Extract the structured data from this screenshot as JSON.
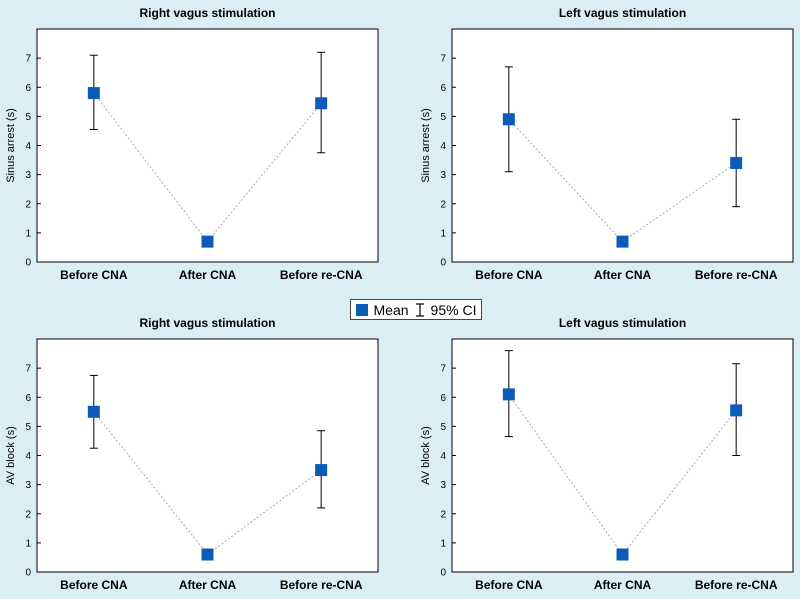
{
  "legend": {
    "mean_label": "Mean",
    "ci_label": "95% CI"
  },
  "colors": {
    "marker": "#0b5cb8",
    "background": "#dbeef5",
    "plot_bg": "#ffffff",
    "connector": "#aaaaaa"
  },
  "chart_data": [
    {
      "type": "scatter",
      "title": "Right vagus stimulation",
      "ylabel": "Sinus arrest (s)",
      "xlabel": "",
      "categories": [
        "Before CNA",
        "After CNA",
        "Before re-CNA"
      ],
      "ylim": [
        0,
        8
      ],
      "yticks": [
        0,
        1,
        2,
        3,
        4,
        5,
        6,
        7
      ],
      "series": [
        {
          "values": [
            5.8,
            0.7,
            5.45
          ],
          "ci_low": [
            4.55,
            0.7,
            3.75
          ],
          "ci_high": [
            7.1,
            0.7,
            7.2
          ]
        }
      ],
      "connector": "dotted",
      "grid": false
    },
    {
      "type": "scatter",
      "title": "Left vagus stimulation",
      "ylabel": "Sinus arrest (s)",
      "xlabel": "",
      "categories": [
        "Before CNA",
        "After CNA",
        "Before re-CNA"
      ],
      "ylim": [
        0,
        8
      ],
      "yticks": [
        0,
        1,
        2,
        3,
        4,
        5,
        6,
        7
      ],
      "series": [
        {
          "values": [
            4.9,
            0.7,
            3.4
          ],
          "ci_low": [
            3.1,
            0.7,
            1.9
          ],
          "ci_high": [
            6.7,
            0.7,
            4.9
          ]
        }
      ],
      "connector": "dotted",
      "grid": false
    },
    {
      "type": "scatter",
      "title": "Right vagus stimulation",
      "ylabel": "AV block (s)",
      "xlabel": "",
      "categories": [
        "Before CNA",
        "After CNA",
        "Before re-CNA"
      ],
      "ylim": [
        0,
        8
      ],
      "yticks": [
        0,
        1,
        2,
        3,
        4,
        5,
        6,
        7
      ],
      "series": [
        {
          "values": [
            5.5,
            0.6,
            3.5
          ],
          "ci_low": [
            4.25,
            0.6,
            2.2
          ],
          "ci_high": [
            6.75,
            0.6,
            4.85
          ]
        }
      ],
      "connector": "dotted",
      "grid": false
    },
    {
      "type": "scatter",
      "title": "Left vagus stimulation",
      "ylabel": "AV block (s)",
      "xlabel": "",
      "categories": [
        "Before CNA",
        "After CNA",
        "Before re-CNA"
      ],
      "ylim": [
        0,
        8
      ],
      "yticks": [
        0,
        1,
        2,
        3,
        4,
        5,
        6,
        7
      ],
      "series": [
        {
          "values": [
            6.1,
            0.6,
            5.55
          ],
          "ci_low": [
            4.65,
            0.6,
            4.0
          ],
          "ci_high": [
            7.6,
            0.6,
            7.15
          ]
        }
      ],
      "connector": "dotted",
      "grid": false
    }
  ]
}
